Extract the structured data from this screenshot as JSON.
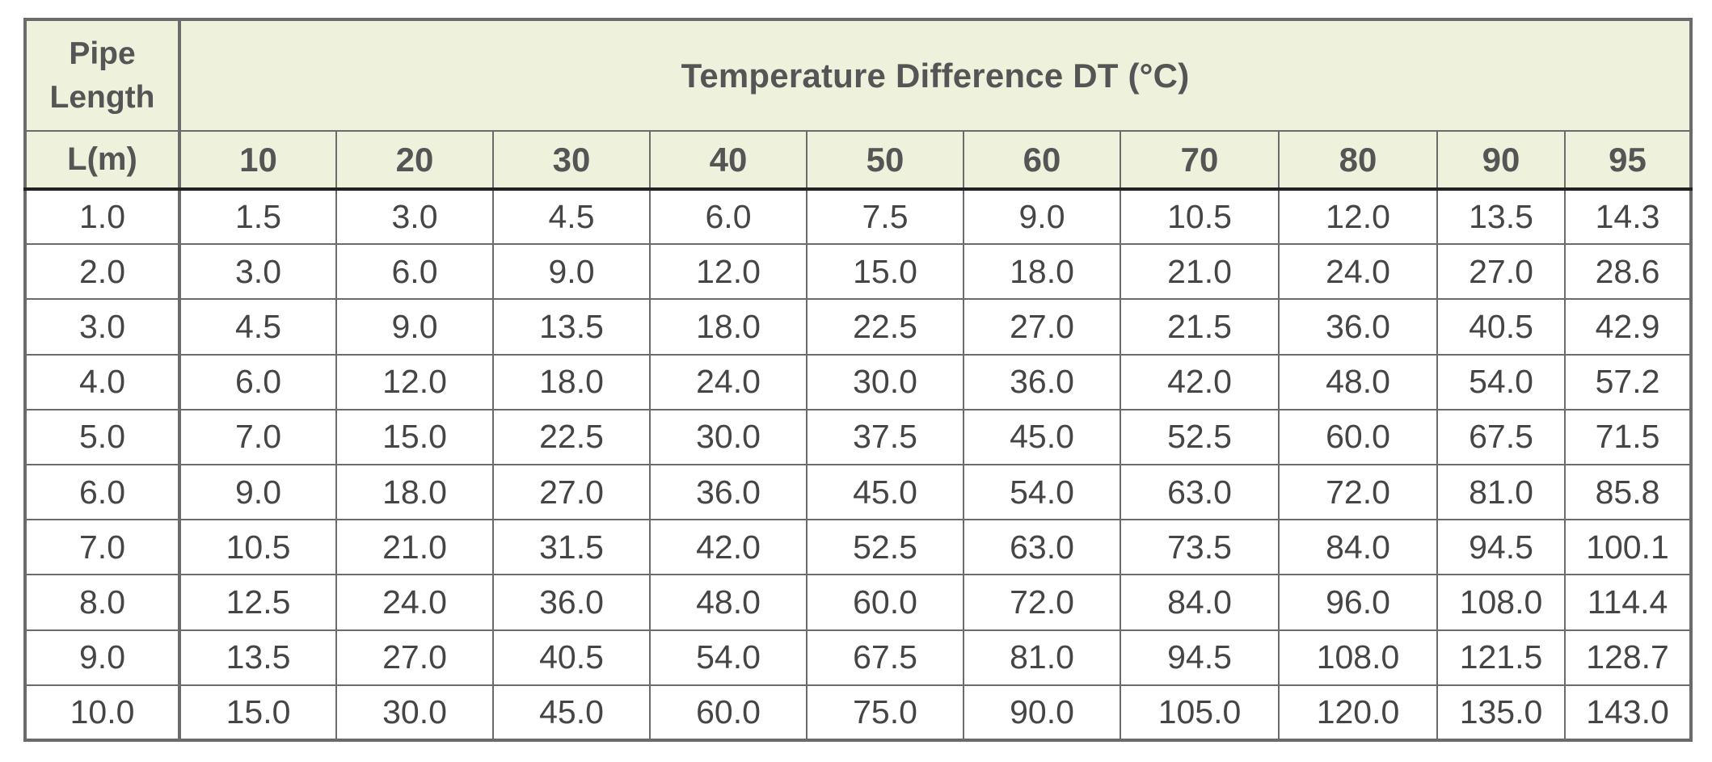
{
  "table": {
    "corner_header_top": "Pipe Length",
    "corner_header_bottom": "L(m)",
    "group_header": "Temperature Difference DT (°C)",
    "columns": [
      "10",
      "20",
      "30",
      "40",
      "50",
      "60",
      "70",
      "80",
      "90",
      "95"
    ],
    "rows": [
      {
        "length": "1.0",
        "values": [
          "1.5",
          "3.0",
          "4.5",
          "6.0",
          "7.5",
          "9.0",
          "10.5",
          "12.0",
          "13.5",
          "14.3"
        ]
      },
      {
        "length": "2.0",
        "values": [
          "3.0",
          "6.0",
          "9.0",
          "12.0",
          "15.0",
          "18.0",
          "21.0",
          "24.0",
          "27.0",
          "28.6"
        ]
      },
      {
        "length": "3.0",
        "values": [
          "4.5",
          "9.0",
          "13.5",
          "18.0",
          "22.5",
          "27.0",
          "21.5",
          "36.0",
          "40.5",
          "42.9"
        ]
      },
      {
        "length": "4.0",
        "values": [
          "6.0",
          "12.0",
          "18.0",
          "24.0",
          "30.0",
          "36.0",
          "42.0",
          "48.0",
          "54.0",
          "57.2"
        ]
      },
      {
        "length": "5.0",
        "values": [
          "7.0",
          "15.0",
          "22.5",
          "30.0",
          "37.5",
          "45.0",
          "52.5",
          "60.0",
          "67.5",
          "71.5"
        ]
      },
      {
        "length": "6.0",
        "values": [
          "9.0",
          "18.0",
          "27.0",
          "36.0",
          "45.0",
          "54.0",
          "63.0",
          "72.0",
          "81.0",
          "85.8"
        ]
      },
      {
        "length": "7.0",
        "values": [
          "10.5",
          "21.0",
          "31.5",
          "42.0",
          "52.5",
          "63.0",
          "73.5",
          "84.0",
          "94.5",
          "100.1"
        ]
      },
      {
        "length": "8.0",
        "values": [
          "12.5",
          "24.0",
          "36.0",
          "48.0",
          "60.0",
          "72.0",
          "84.0",
          "96.0",
          "108.0",
          "114.4"
        ]
      },
      {
        "length": "9.0",
        "values": [
          "13.5",
          "27.0",
          "40.5",
          "54.0",
          "67.5",
          "81.0",
          "94.5",
          "108.0",
          "121.5",
          "128.7"
        ]
      },
      {
        "length": "10.0",
        "values": [
          "15.0",
          "30.0",
          "45.0",
          "60.0",
          "75.0",
          "90.0",
          "105.0",
          "120.0",
          "135.0",
          "143.0"
        ]
      }
    ]
  },
  "colors": {
    "header_background": "#eef1dc",
    "grid_line": "#6b6b6b",
    "text": "#454545"
  }
}
